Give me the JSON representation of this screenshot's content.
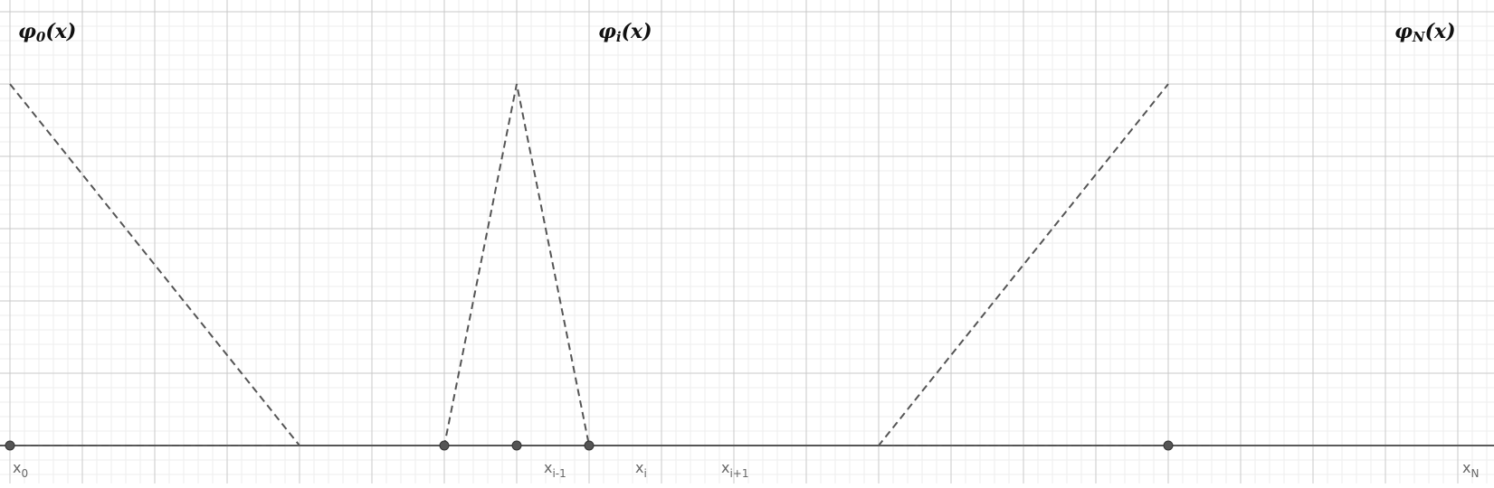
{
  "diagram": {
    "title": "",
    "functions": [
      {
        "id": "phi0",
        "symbol": "φ",
        "subscript": "0",
        "argument": "(x)",
        "knots": [
          [
            0,
            1
          ],
          [
            4,
            0
          ]
        ]
      },
      {
        "id": "phii",
        "symbol": "φ",
        "subscript": "i",
        "argument": "(x)",
        "knots": [
          [
            6,
            0
          ],
          [
            7,
            1
          ],
          [
            8,
            0
          ]
        ]
      },
      {
        "id": "phiN",
        "symbol": "φ",
        "subscript": "N",
        "argument": "(x)",
        "knots": [
          [
            12,
            0
          ],
          [
            16,
            1
          ]
        ]
      }
    ],
    "nodes": [
      {
        "id": "x0",
        "base": "x",
        "subscript": "0",
        "x": 0
      },
      {
        "id": "xim1",
        "base": "x",
        "subscript": "i-1",
        "x": 6
      },
      {
        "id": "xi",
        "base": "x",
        "subscript": "i",
        "x": 7
      },
      {
        "id": "xip1",
        "base": "x",
        "subscript": "i+1",
        "x": 8
      },
      {
        "id": "xN",
        "base": "x",
        "subscript": "N",
        "x": 16
      }
    ],
    "axis_range": {
      "x": [
        0,
        16
      ],
      "y": [
        0,
        1
      ]
    },
    "grid": true,
    "colors": {
      "background": "#ffffff",
      "major_grid": "#c9c9c9",
      "minor_grid": "#ededed",
      "axis": "#5a5a5a",
      "curve": "#555555",
      "node": "#555555",
      "node_label": "#666666",
      "function_label": "#111111"
    }
  }
}
